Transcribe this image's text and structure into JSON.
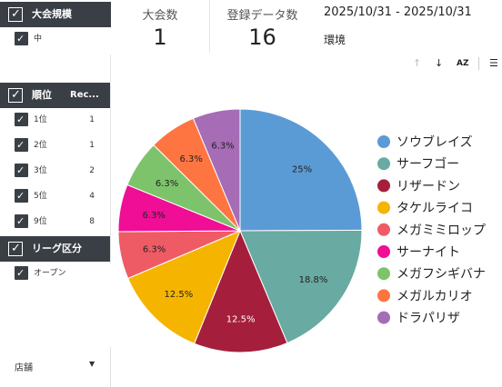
{
  "sidebar": {
    "tournament_scale": {
      "header": "大会規模",
      "items": [
        {
          "label": "中"
        }
      ]
    },
    "rank": {
      "header": "順位",
      "header2": "Rec...",
      "items": [
        {
          "label": "1位",
          "count": "1"
        },
        {
          "label": "2位",
          "count": "1"
        },
        {
          "label": "3位",
          "count": "2"
        },
        {
          "label": "5位",
          "count": "4"
        },
        {
          "label": "9位",
          "count": "8"
        }
      ]
    },
    "league": {
      "header": "リーグ区分",
      "items": [
        {
          "label": "オープン"
        }
      ]
    },
    "store_dropdown": {
      "label": "店舗"
    }
  },
  "scorecards": [
    {
      "label": "大会数",
      "value": "1"
    },
    {
      "label": "登録データ数",
      "value": "16"
    }
  ],
  "date_range": "2025/10/31 - 2025/10/31",
  "env_label": "環境",
  "toolbar": {
    "sort_label": "AZ"
  },
  "chart_data": {
    "type": "pie",
    "legend_position": "right",
    "slices": [
      {
        "name": "ソウブレイズ",
        "value": 25,
        "label": "25%",
        "color": "#5b9bd5"
      },
      {
        "name": "サーフゴー",
        "value": 18.8,
        "label": "18.8%",
        "color": "#69aaa2"
      },
      {
        "name": "リザードン",
        "value": 12.5,
        "label": "12.5%",
        "color": "#a51f3c"
      },
      {
        "name": "タケルライコ",
        "value": 12.5,
        "label": "12.5%",
        "color": "#f5b400"
      },
      {
        "name": "メガミミロップ",
        "value": 6.3,
        "label": "6.3%",
        "color": "#ef5b65"
      },
      {
        "name": "サーナイト",
        "value": 6.3,
        "label": "6.3%",
        "color": "#ef0e95"
      },
      {
        "name": "メガフシギバナ",
        "value": 6.3,
        "label": "6.3%",
        "color": "#7dc36b"
      },
      {
        "name": "メガルカリオ",
        "value": 6.3,
        "label": "6.3%",
        "color": "#ff7542"
      },
      {
        "name": "ドラパリザ",
        "value": 6.3,
        "label": "6.3%",
        "color": "#a66cb5"
      }
    ]
  }
}
